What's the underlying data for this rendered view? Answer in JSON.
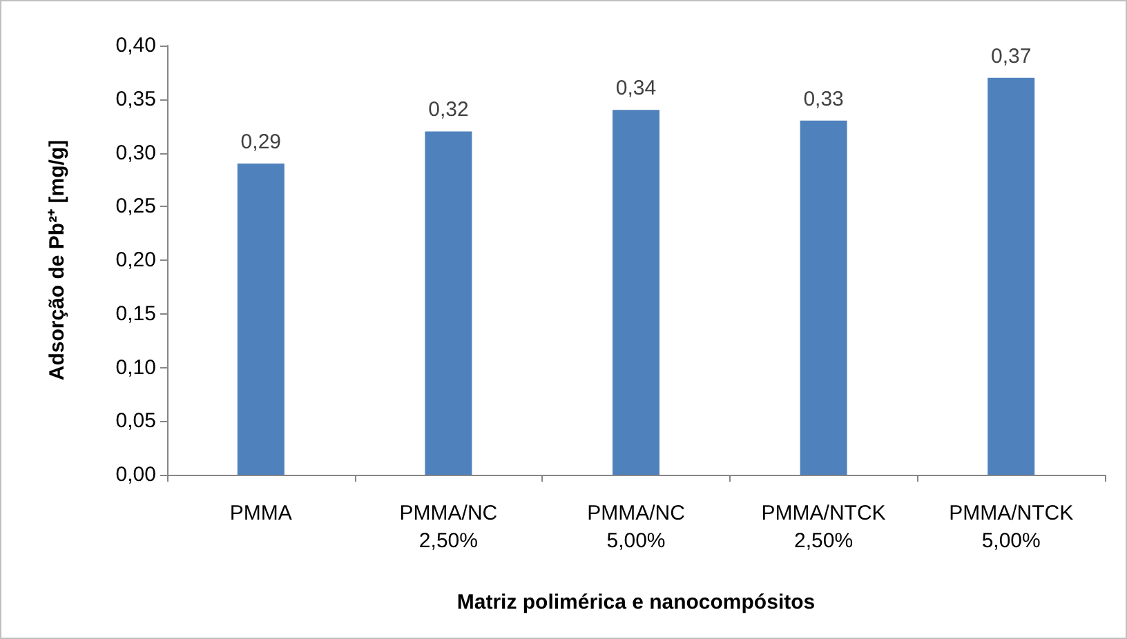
{
  "chart_data": {
    "type": "bar",
    "xlabel": "Matriz polimérica e nanocompósitos",
    "ylabel": "Adsorção de Pb²⁺ [mg/g]",
    "categories": [
      "PMMA",
      "PMMA/NC 2,50%",
      "PMMA/NC 5,00%",
      "PMMA/NTCK 2,50%",
      "PMMA/NTCK 5,00%"
    ],
    "values": [
      0.29,
      0.32,
      0.34,
      0.33,
      0.37
    ],
    "color": "#4f81bd",
    "value_labels": [
      "0,29",
      "0,32",
      "0,34",
      "0,33",
      "0,37"
    ],
    "ylim": [
      0,
      0.4
    ],
    "yticks": [
      {
        "value": 0,
        "label": "0,00"
      },
      {
        "value": 0.05,
        "label": "0,05"
      },
      {
        "value": 0.1,
        "label": "0,10"
      },
      {
        "value": 0.15,
        "label": "0,15"
      },
      {
        "value": 0.2,
        "label": "0,20"
      },
      {
        "value": 0.25,
        "label": "0,25"
      },
      {
        "value": 0.3,
        "label": "0,30"
      },
      {
        "value": 0.35,
        "label": "0,35"
      },
      {
        "value": 0.4,
        "label": "0,40"
      }
    ],
    "grid": false
  }
}
